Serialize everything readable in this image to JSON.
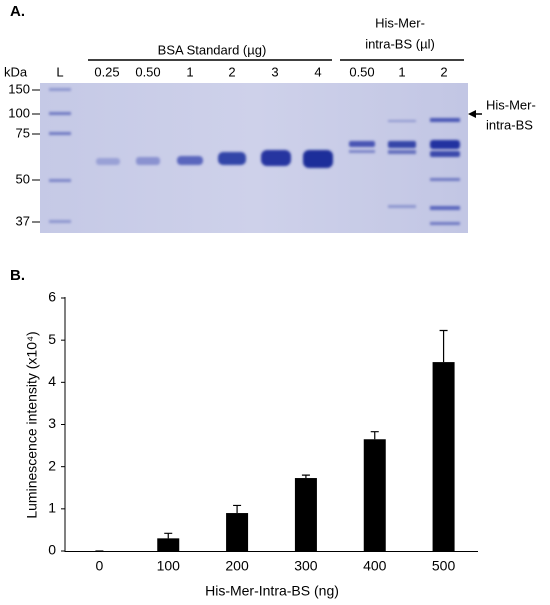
{
  "gel": {
    "panel_label": "A.",
    "kda_label": "kDa",
    "ladder_label": "L",
    "bsa_title": "BSA Standard (µg)",
    "bsa_lanes": [
      "0.25",
      "0.50",
      "1",
      "2",
      "3",
      "4"
    ],
    "his_title": [
      "His-Mer-",
      "intra-BS (µl)"
    ],
    "his_lanes": [
      "0.50",
      "1",
      "2"
    ],
    "markers": [
      "150",
      "100",
      "75",
      "50",
      "37"
    ],
    "arrow_label": [
      "His-Mer-",
      "intra-BS"
    ]
  },
  "panel_b_label": "B.",
  "chart_data": {
    "type": "bar",
    "categories": [
      "0",
      "100",
      "200",
      "300",
      "400",
      "500"
    ],
    "values": [
      0,
      0.3,
      0.9,
      1.73,
      2.65,
      4.48
    ],
    "errors": [
      0,
      0.12,
      0.18,
      0.07,
      0.18,
      0.75
    ],
    "color": "#000000",
    "ylim": [
      0,
      6
    ],
    "yticks": [
      0,
      1,
      2,
      3,
      4,
      5,
      6
    ],
    "ylabel": "Luminescence intensity (x10⁴)",
    "xlabel": "His-Mer-Intra-BS (ng)"
  }
}
